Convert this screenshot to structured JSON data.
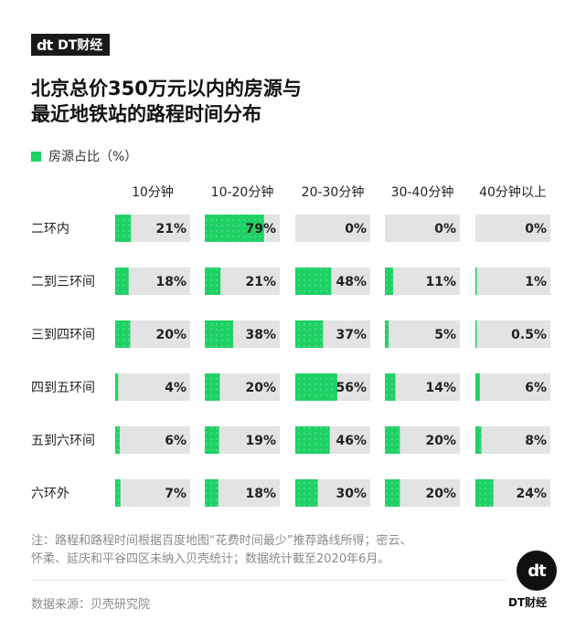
{
  "brand": {
    "mark": "dt",
    "name": "DT财经"
  },
  "title_lines": [
    "北京总价350万元以内的房源与",
    "最近地铁站的路程时间分布"
  ],
  "legend": {
    "label": "房源占比（%）"
  },
  "colors": {
    "bar": "#1ed164",
    "track": "#e3e3e3"
  },
  "chart_data": {
    "type": "table",
    "columns": [
      "10分钟",
      "10-20分钟",
      "20-30分钟",
      "30-40分钟",
      "40分钟以上"
    ],
    "rows": [
      {
        "name": "二环内",
        "values": [
          21,
          79,
          0,
          0,
          0
        ],
        "labels": [
          "21%",
          "79%",
          "0%",
          "0%",
          "0%"
        ]
      },
      {
        "name": "二到三环间",
        "values": [
          18,
          21,
          48,
          11,
          1
        ],
        "labels": [
          "18%",
          "21%",
          "48%",
          "11%",
          "1%"
        ]
      },
      {
        "name": "三到四环间",
        "values": [
          20,
          38,
          37,
          5,
          0.5
        ],
        "labels": [
          "20%",
          "38%",
          "37%",
          "5%",
          "0.5%"
        ]
      },
      {
        "name": "四到五环间",
        "values": [
          4,
          20,
          56,
          14,
          6
        ],
        "labels": [
          "4%",
          "20%",
          "56%",
          "14%",
          "6%"
        ]
      },
      {
        "name": "五到六环间",
        "values": [
          6,
          19,
          46,
          20,
          8
        ],
        "labels": [
          "6%",
          "19%",
          "46%",
          "20%",
          "8%"
        ]
      },
      {
        "name": "六环外",
        "values": [
          7,
          18,
          30,
          20,
          24
        ],
        "labels": [
          "7%",
          "18%",
          "30%",
          "20%",
          "24%"
        ]
      }
    ],
    "max": 100
  },
  "note": {
    "line1": "注：路程和路程时间根据百度地图“花费时间最少”推荐路线所得；密云、",
    "line2": "怀柔、延庆和平谷四区未纳入贝壳统计；数据统计截至2020年6月。"
  },
  "source": "数据来源：贝壳研究院",
  "footer_logo": {
    "mark": "dt",
    "name": "DT财经"
  }
}
